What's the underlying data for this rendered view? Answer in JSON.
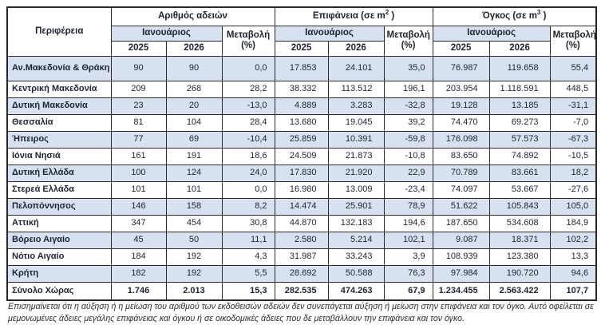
{
  "table": {
    "region_header": "Περιφέρεια",
    "month_header": "Ιανουάριος",
    "change_header_line1": "Μεταβολή",
    "change_header_line2": "(%)",
    "year_headers": [
      "2025",
      "2026"
    ],
    "groups": [
      {
        "title_prefix": "Αριθμός αδειών",
        "sup": "",
        "suffix": ""
      },
      {
        "title_prefix": "Επιφάνεια (σε m",
        "sup": "2",
        "suffix": " )"
      },
      {
        "title_prefix": "Όγκος (σε m",
        "sup": "3",
        "suffix": " )"
      }
    ],
    "rows": [
      {
        "region": "Αν.Μακεδονία & Θράκη",
        "values": [
          "90",
          "90",
          "0,0",
          "17.853",
          "24.101",
          "35,0",
          "76.987",
          "119.658",
          "55,4"
        ]
      },
      {
        "region": "Κεντρική Μακεδονία",
        "values": [
          "209",
          "268",
          "28,2",
          "38.332",
          "113.512",
          "196,1",
          "203.954",
          "1.118.591",
          "448,5"
        ]
      },
      {
        "region": "Δυτική Μακεδονία",
        "values": [
          "23",
          "20",
          "-13,0",
          "4.889",
          "3.283",
          "-32,8",
          "19.128",
          "13.185",
          "-31,1"
        ]
      },
      {
        "region": "Θεσσαλία",
        "values": [
          "81",
          "104",
          "28,4",
          "13.680",
          "19.045",
          "39,2",
          "74.470",
          "69.273",
          "-7,0"
        ]
      },
      {
        "region": "Ήπειρος",
        "values": [
          "77",
          "69",
          "-10,4",
          "25.859",
          "10.391",
          "-59,8",
          "176.098",
          "57.573",
          "-67,3"
        ]
      },
      {
        "region": "Ιόνια Νησιά",
        "values": [
          "161",
          "191",
          "18,6",
          "24.509",
          "21.873",
          "-10,8",
          "83.650",
          "74.892",
          "-10,5"
        ]
      },
      {
        "region": "Δυτική Ελλάδα",
        "values": [
          "100",
          "124",
          "24,0",
          "17.830",
          "21.920",
          "22,9",
          "70.789",
          "83.661",
          "18,2"
        ]
      },
      {
        "region": "Στερεά Ελλάδα",
        "values": [
          "101",
          "101",
          "0,0",
          "16.980",
          "13.009",
          "-23,4",
          "74.097",
          "53.667",
          "-27,6"
        ]
      },
      {
        "region": "Πελοπόννησος",
        "values": [
          "146",
          "158",
          "8,2",
          "14.474",
          "25.901",
          "78,9",
          "51.622",
          "105.843",
          "105,0"
        ]
      },
      {
        "region": "Αττική",
        "values": [
          "347",
          "454",
          "30,8",
          "44.870",
          "132.183",
          "194,6",
          "187.650",
          "534.608",
          "184,9"
        ]
      },
      {
        "region": "Βόρειο Αιγαίο",
        "values": [
          "45",
          "50",
          "11,1",
          "2.580",
          "5.214",
          "102,1",
          "9.087",
          "18.371",
          "102,2"
        ]
      },
      {
        "region": "Νότιο Αιγαίο",
        "values": [
          "184",
          "192",
          "4,3",
          "31.987",
          "33.243",
          "3,9",
          "108.939",
          "123.380",
          "13,3"
        ]
      },
      {
        "region": "Κρήτη",
        "values": [
          "182",
          "192",
          "5,5",
          "28.692",
          "50.588",
          "76,3",
          "97.984",
          "190.720",
          "94,6"
        ]
      }
    ],
    "total_row": {
      "region": "Σύνολο Χώρας",
      "values": [
        "1.746",
        "2.013",
        "15,3",
        "282.535",
        "474.263",
        "67,9",
        "1.234.455",
        "2.563.422",
        "107,7"
      ]
    }
  },
  "footnote": "Επισημαίνεται ότι η αύξηση ή η μείωση του αριθμού των εκδοθεισών αδειών δεν συνεπάγεται αύξηση ή μείωση στην επιφάνεια και τον όγκο. Αυτό οφείλεται σε μεμονωμένες άδειες μεγάλης επιφάνειας και όγκου ή σε οικοδομικές άδειες που δε μεταβάλλουν την επιφάνεια και τον όγκο.",
  "colors": {
    "row_alt": "#d7e1ef",
    "border": "#262626",
    "text": "#1c2431"
  }
}
